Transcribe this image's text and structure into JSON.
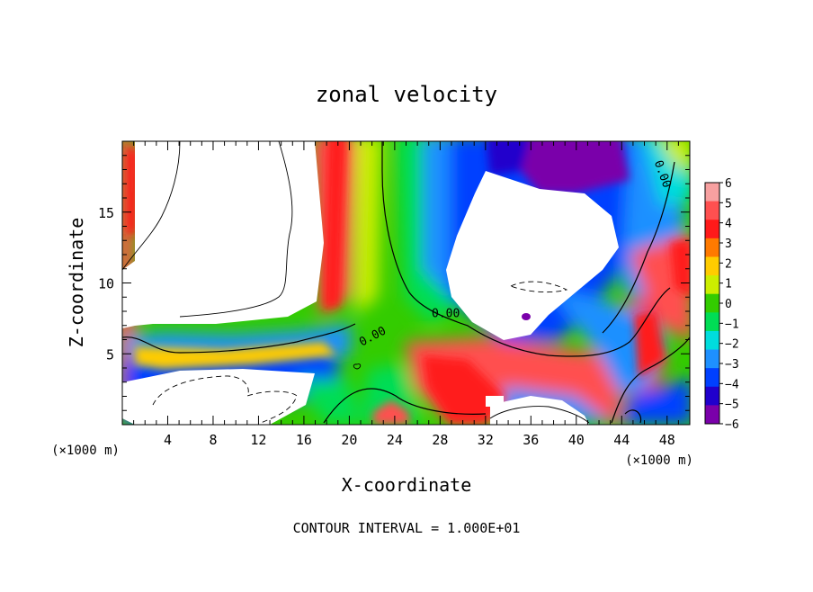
{
  "chart_data": {
    "type": "heatmap",
    "title": "zonal velocity",
    "xlabel": "X-coordinate",
    "ylabel": "Z-coordinate",
    "x_unit": "(×1000 m)",
    "y_unit": "(×1000 m)",
    "footer": "CONTOUR INTERVAL = 1.000E+01",
    "xlim": [
      0,
      50
    ],
    "ylim": [
      0,
      20
    ],
    "x_ticks": [
      4,
      8,
      12,
      16,
      20,
      24,
      28,
      32,
      36,
      40,
      44,
      48
    ],
    "y_ticks": [
      5,
      10,
      15
    ],
    "contour_labels": [
      {
        "text": "0.00",
        "x": 22.2,
        "y": 6.0,
        "rotate": -28
      },
      {
        "text": "0.00",
        "x": 28.5,
        "y": 7.6,
        "rotate": 0
      },
      {
        "text": "0.00",
        "x": 47.3,
        "y": 17.6,
        "rotate": 70
      }
    ],
    "colorbar": {
      "ticks": [
        "6",
        "5",
        "4",
        "3",
        "2",
        "1",
        "0",
        "−1",
        "−2",
        "−3",
        "−4",
        "−5",
        "−6"
      ],
      "levels": [
        6,
        5,
        4,
        3,
        2,
        1,
        0,
        -1,
        -2,
        -3,
        -4,
        -5,
        -6
      ],
      "colors": [
        "#f7a0a0",
        "#ff5050",
        "#ff1a1a",
        "#ff7a00",
        "#ffcc00",
        "#ccee00",
        "#33cc00",
        "#00dd55",
        "#00dddd",
        "#1e90ff",
        "#0040ff",
        "#2000cc",
        "#7a00aa"
      ]
    }
  }
}
